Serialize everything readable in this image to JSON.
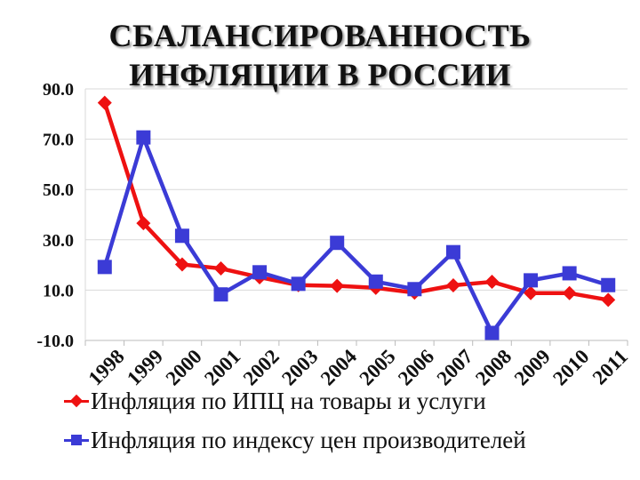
{
  "chart_data": {
    "type": "line",
    "title": "СБАЛАНСИРОВАННОСТЬ ИНФЛЯЦИИ В РОССИИ",
    "title_lines": [
      "СБАЛАНСИРОВАННОСТЬ",
      "ИНФЛЯЦИИ В РОССИИ"
    ],
    "categories": [
      "1998",
      "1999",
      "2000",
      "2001",
      "2002",
      "2003",
      "2004",
      "2005",
      "2006",
      "2007",
      "2008",
      "2009",
      "2010",
      "2011"
    ],
    "y_ticks": [
      "-10.0",
      "10.0",
      "30.0",
      "50.0",
      "70.0",
      "90.0"
    ],
    "y_tick_values": [
      -10,
      10,
      30,
      50,
      70,
      90
    ],
    "ylim": [
      -10,
      90
    ],
    "grid": true,
    "legend_position": "bottom",
    "series": [
      {
        "name": "Инфляция по ИПЦ на товары и услуги",
        "color": "#ee1111",
        "marker": "diamond",
        "values": [
          84.5,
          36.6,
          20.2,
          18.6,
          15.1,
          12.0,
          11.7,
          10.9,
          9.0,
          11.9,
          13.3,
          8.8,
          8.8,
          6.1
        ]
      },
      {
        "name": "Инфляция по индексу цен производителей",
        "color": "#3b3bd6",
        "marker": "square",
        "values": [
          19.2,
          70.7,
          31.6,
          8.3,
          17.1,
          12.5,
          28.8,
          13.4,
          10.4,
          25.1,
          -7.0,
          13.9,
          16.7,
          12.0
        ]
      }
    ]
  }
}
